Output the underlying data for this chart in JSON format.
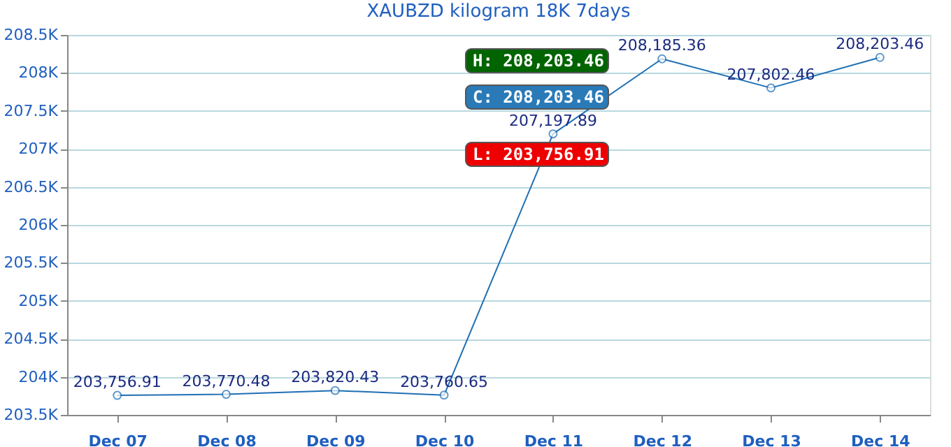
{
  "chart_data": {
    "type": "line",
    "title": "XAUBZD kilogram 18K 7days",
    "categories": [
      "Dec 07",
      "Dec 08",
      "Dec 09",
      "Dec 10",
      "Dec 11",
      "Dec 12",
      "Dec 13",
      "Dec 14"
    ],
    "series": [
      {
        "color": "#1f6fb4",
        "values": [
          203756.91,
          203770.48,
          203820.43,
          203760.65,
          207197.89,
          208185.36,
          207802.46,
          208203.46
        ],
        "value_labels": [
          "203,756.91",
          "203,770.48",
          "203,820.43",
          "203,760.65",
          "207,197.89",
          "208,185.36",
          "207,802.46",
          "208,203.46"
        ]
      }
    ],
    "ylim": [
      203500,
      208500
    ],
    "yticks": [
      {
        "value": 203500,
        "label": "203.5K"
      },
      {
        "value": 204000,
        "label": "204K"
      },
      {
        "value": 204500,
        "label": "204.5K"
      },
      {
        "value": 205000,
        "label": "205K"
      },
      {
        "value": 205500,
        "label": "205.5K"
      },
      {
        "value": 206000,
        "label": "206K"
      },
      {
        "value": 206500,
        "label": "206.5K"
      },
      {
        "value": 207000,
        "label": "207K"
      },
      {
        "value": 207500,
        "label": "207.5K"
      },
      {
        "value": 208000,
        "label": "208K"
      },
      {
        "value": 208500,
        "label": "208.5K"
      }
    ],
    "annotations": [
      "H: 208,203.46",
      "C: 208,203.46",
      "L: 203,756.91"
    ],
    "grid": "y",
    "marker": "circle",
    "line_style": "solid"
  }
}
